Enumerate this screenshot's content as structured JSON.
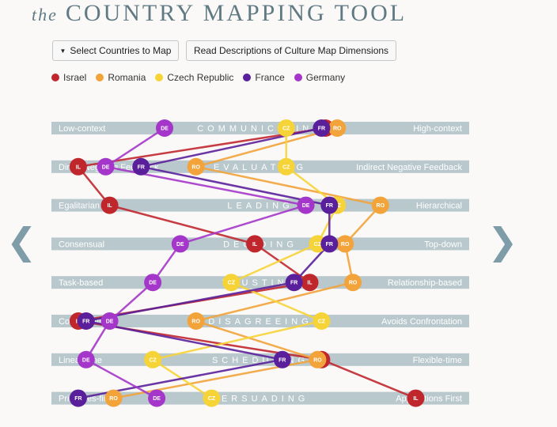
{
  "header": {
    "title_prefix": "the",
    "title_main": "COUNTRY MAPPING TOOL"
  },
  "toolbar": {
    "select_label": "Select Countries to Map",
    "read_label": "Read Descriptions of Culture Map Dimensions"
  },
  "legend": [
    {
      "name": "Israel",
      "color": "#c0272d"
    },
    {
      "name": "Romania",
      "color": "#f2a33a"
    },
    {
      "name": "Czech Republic",
      "color": "#f6d438"
    },
    {
      "name": "France",
      "color": "#5a1f9a"
    },
    {
      "name": "Germany",
      "color": "#a436c9"
    }
  ],
  "countries": [
    {
      "code": "IL",
      "color": "#c0272d"
    },
    {
      "code": "RO",
      "color": "#f2a33a"
    },
    {
      "code": "CZ",
      "color": "#f6d438"
    },
    {
      "code": "FR",
      "color": "#5a1f9a"
    },
    {
      "code": "DE",
      "color": "#a436c9"
    }
  ],
  "chart_data": {
    "type": "line",
    "scale": [
      0,
      100
    ],
    "dimensions": [
      {
        "name": "COMMUNICATING",
        "left": "Low-context",
        "right": "High-context",
        "values": {
          "IL": 66,
          "RO": 69,
          "CZ": 56,
          "FR": 65,
          "DE": 25
        }
      },
      {
        "name": "EVALUATING",
        "left": "Direct Negative Feedback",
        "right": "Indirect Negative Feedback",
        "values": {
          "IL": 3,
          "RO": 33,
          "CZ": 56,
          "FR": 19,
          "DE": 10
        }
      },
      {
        "name": "LEADING",
        "left": "Egalitarian",
        "right": "Hierarchical",
        "values": {
          "IL": 11,
          "RO": 80,
          "CZ": 69,
          "FR": 67,
          "DE": 61
        }
      },
      {
        "name": "DECIDING",
        "left": "Consensual",
        "right": "Top-down",
        "values": {
          "IL": 48,
          "RO": 71,
          "CZ": 64,
          "FR": 67,
          "DE": 29
        }
      },
      {
        "name": "TRUSTING",
        "left": "Task-based",
        "right": "Relationship-based",
        "values": {
          "IL": 62,
          "RO": 73,
          "CZ": 42,
          "FR": 58,
          "DE": 22
        }
      },
      {
        "name": "DISAGREEING",
        "left": "Confrontational",
        "right": "Avoids Confrontation",
        "values": {
          "IL": 3,
          "RO": 33,
          "CZ": 65,
          "FR": 5,
          "DE": 11
        }
      },
      {
        "name": "SCHEDULING",
        "left": "Linear-time",
        "right": "Flexible-time",
        "values": {
          "IL": 65,
          "RO": 64,
          "CZ": 22,
          "FR": 55,
          "DE": 5
        }
      },
      {
        "name": "PERSUADING",
        "left": "Principles-first",
        "right": "Applications First",
        "values": {
          "IL": 89,
          "RO": 12,
          "CZ": 37,
          "FR": 3,
          "DE": 23
        }
      }
    ]
  }
}
